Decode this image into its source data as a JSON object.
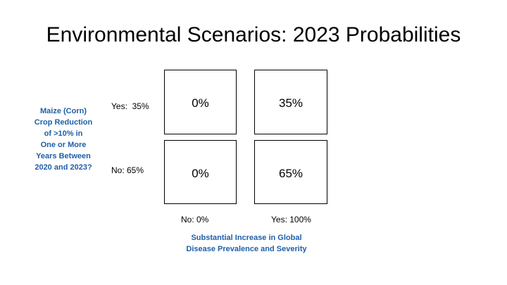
{
  "title": "Environmental Scenarios: 2023 Probabilities",
  "y_axis": {
    "lines": [
      "Maize (Corn)",
      "Crop Reduction",
      "of >10% in",
      "One or More",
      "Years Between",
      "2020 and 2023?"
    ]
  },
  "rows": [
    {
      "label": "Yes:  35%"
    },
    {
      "label": "No: 65%"
    }
  ],
  "columns": [
    {
      "label": "No: 0%"
    },
    {
      "label": "Yes: 100%"
    }
  ],
  "cells": [
    [
      "0%",
      "35%"
    ],
    [
      "0%",
      "65%"
    ]
  ],
  "x_axis": {
    "lines": [
      "Substantial Increase in Global",
      "Disease Prevalence and Severity"
    ]
  },
  "colors": {
    "axis_label": "#1f5fa8",
    "text": "#000000",
    "border": "#000000"
  }
}
